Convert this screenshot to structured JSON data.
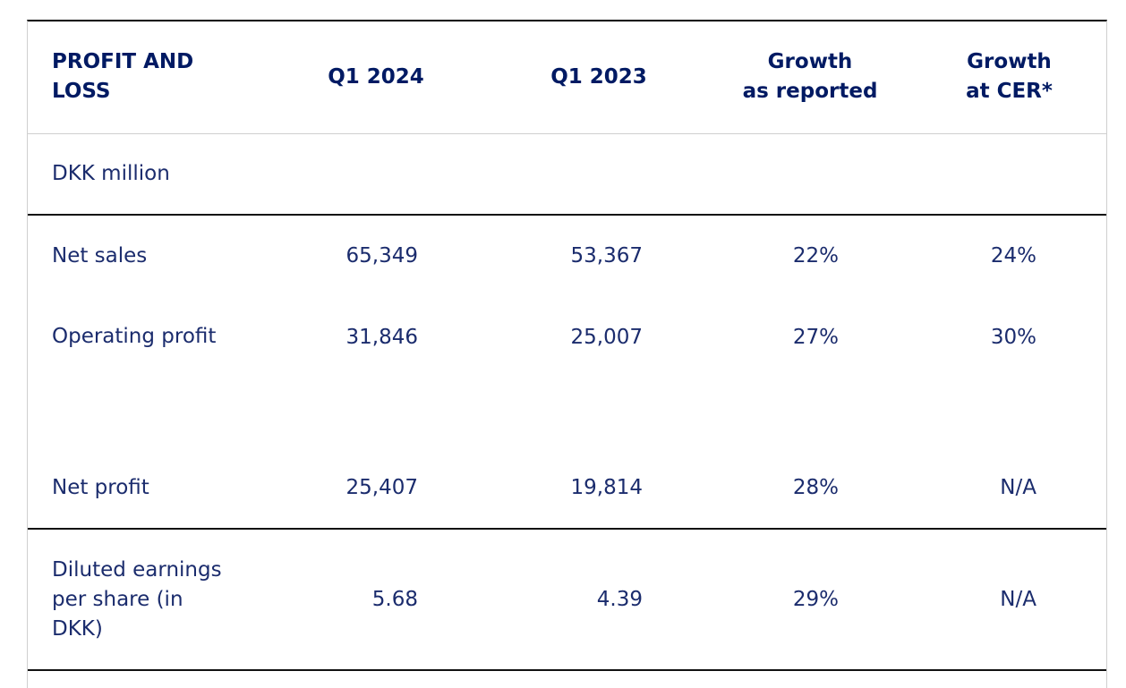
{
  "table": {
    "columns": [
      {
        "label": "PROFIT AND\nLOSS"
      },
      {
        "label": "Q1 2024"
      },
      {
        "label": "Q1 2023"
      },
      {
        "label": "Growth\nas reported"
      },
      {
        "label": "Growth\nat CER*"
      }
    ],
    "unit_row_label": "DKK million",
    "rows": [
      {
        "label": "Net sales",
        "q1_2024": "65,349",
        "q1_2023": "53,367",
        "growth_as_reported": "22%",
        "growth_at_cer": "24%"
      },
      {
        "label": "Operating profit",
        "q1_2024": "31,846",
        "q1_2023": "25,007",
        "growth_as_reported": "27%",
        "growth_at_cer": "30%"
      },
      {
        "label": "Net profit",
        "q1_2024": "25,407",
        "q1_2023": "19,814",
        "growth_as_reported": "28%",
        "growth_at_cer": "N/A"
      },
      {
        "label": "Diluted earnings\nper share (in\nDKK)",
        "q1_2024": "5.68",
        "q1_2023": "4.39",
        "growth_as_reported": "29%",
        "growth_at_cer": "N/A"
      }
    ]
  },
  "colors": {
    "header_text": "#001a63",
    "body_text": "#1b2c6d",
    "rule_dark": "#111111",
    "rule_light": "#cfcfcf",
    "top_border": "#000000",
    "background": "#ffffff"
  }
}
